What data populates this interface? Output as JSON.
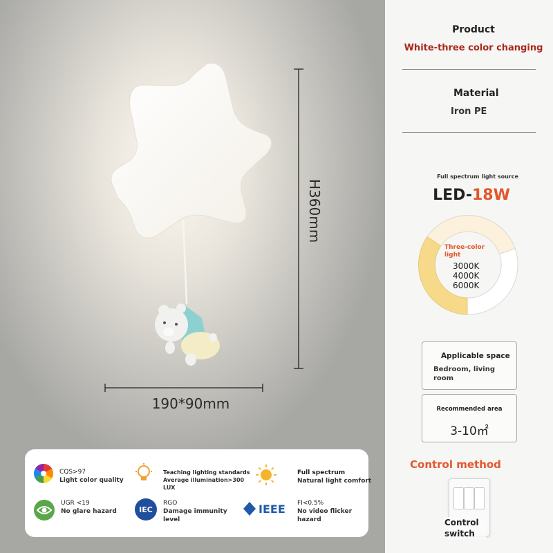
{
  "dimensions": {
    "height_label": "H360mm",
    "width_label": "190*90mm"
  },
  "product": {
    "title": "Product",
    "value": "White-three color changing"
  },
  "material": {
    "title": "Material",
    "value": "Iron PE"
  },
  "light_source": {
    "caption": "Full spectrum light source",
    "led_prefix": "LED-",
    "wattage": "18W",
    "ring_title": "Three-color light",
    "temps": [
      "3000K",
      "4000K",
      "6000K"
    ],
    "colors": {
      "warm": "#f7d98a",
      "neutral": "#fbf1dc",
      "cool": "#ffffff"
    }
  },
  "applicable_space": {
    "title": "Applicable space",
    "value": "Bedroom, living room"
  },
  "recommended_area": {
    "title": "Recommended area",
    "value": "3-10㎡"
  },
  "control": {
    "heading": "Control method",
    "label": "Control switch"
  },
  "features": [
    {
      "icon": "color-wheel-icon",
      "title": "CQS>97",
      "sub": "Light color quality"
    },
    {
      "icon": "lightbulb-icon",
      "title": "Teaching lighting standards",
      "sub": "Average illumination>300 LUX"
    },
    {
      "icon": "sun-icon",
      "title": "Full spectrum",
      "sub": "Natural light comfort"
    },
    {
      "icon": "eye-icon",
      "title": "UGR <19",
      "sub": "No glare hazard"
    },
    {
      "icon": "iec-logo-icon",
      "title": "RGO",
      "sub": "Damage immunity level"
    },
    {
      "icon": "ieee-logo-icon",
      "title": "FI<0.5%",
      "sub": "No video flicker hazard"
    }
  ],
  "accent_colors": {
    "red": "#a8281c",
    "orange": "#e2572b"
  }
}
